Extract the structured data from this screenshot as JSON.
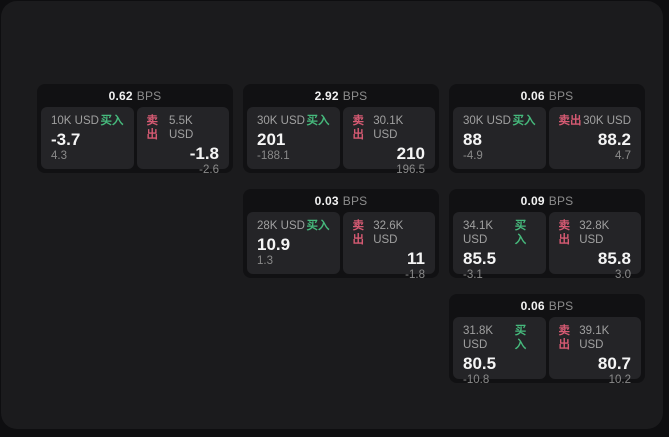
{
  "labels": {
    "buy": "买入",
    "sell": "卖出",
    "bps_unit": "BPS"
  },
  "colors": {
    "buy_green": "#46b97c",
    "sell_red": "#d65a73",
    "window_bg": "#1b1b1d",
    "card_bg": "#111113",
    "tile_bg": "#242427"
  },
  "cards": [
    {
      "col": 1,
      "row": 1,
      "bps": "0.62",
      "buy": {
        "notional": "10K USD",
        "main": "-3.7",
        "sub": "4.3"
      },
      "sell": {
        "notional": "5.5K USD",
        "main": "-1.8",
        "sub": "-2.6"
      }
    },
    {
      "col": 2,
      "row": 1,
      "bps": "2.92",
      "buy": {
        "notional": "30K USD",
        "main": "201",
        "sub": "-188.1"
      },
      "sell": {
        "notional": "30.1K USD",
        "main": "210",
        "sub": "196.5"
      }
    },
    {
      "col": 3,
      "row": 1,
      "bps": "0.06",
      "buy": {
        "notional": "30K USD",
        "main": "88",
        "sub": "-4.9"
      },
      "sell": {
        "notional": "30K USD",
        "main": "88.2",
        "sub": "4.7"
      }
    },
    {
      "col": 2,
      "row": 2,
      "bps": "0.03",
      "buy": {
        "notional": "28K USD",
        "main": "10.9",
        "sub": "1.3"
      },
      "sell": {
        "notional": "32.6K USD",
        "main": "11",
        "sub": "-1.8"
      }
    },
    {
      "col": 3,
      "row": 2,
      "bps": "0.09",
      "buy": {
        "notional": "34.1K USD",
        "main": "85.5",
        "sub": "-3.1"
      },
      "sell": {
        "notional": "32.8K USD",
        "main": "85.8",
        "sub": "3.0"
      }
    },
    {
      "col": 3,
      "row": 3,
      "bps": "0.06",
      "buy": {
        "notional": "31.8K USD",
        "main": "80.5",
        "sub": "-10.8"
      },
      "sell": {
        "notional": "39.1K USD",
        "main": "80.7",
        "sub": "10.2"
      }
    }
  ]
}
